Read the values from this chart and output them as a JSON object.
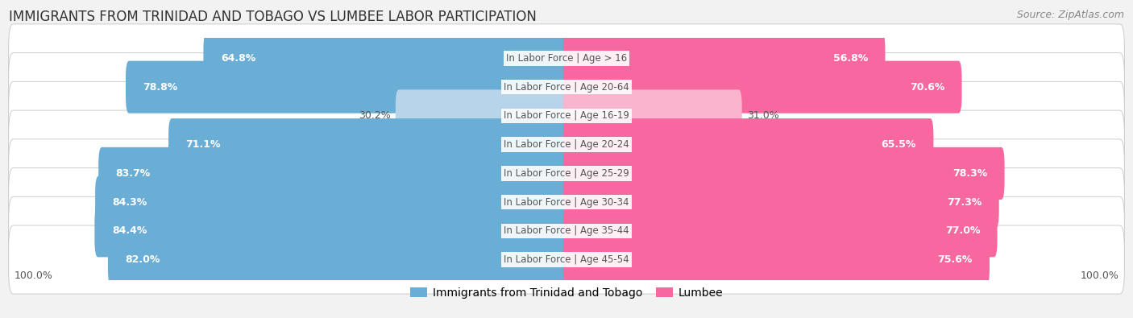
{
  "title": "IMMIGRANTS FROM TRINIDAD AND TOBAGO VS LUMBEE LABOR PARTICIPATION",
  "source": "Source: ZipAtlas.com",
  "categories": [
    "In Labor Force | Age > 16",
    "In Labor Force | Age 20-64",
    "In Labor Force | Age 16-19",
    "In Labor Force | Age 20-24",
    "In Labor Force | Age 25-29",
    "In Labor Force | Age 30-34",
    "In Labor Force | Age 35-44",
    "In Labor Force | Age 45-54"
  ],
  "left_values": [
    64.8,
    78.8,
    30.2,
    71.1,
    83.7,
    84.3,
    84.4,
    82.0
  ],
  "right_values": [
    56.8,
    70.6,
    31.0,
    65.5,
    78.3,
    77.3,
    77.0,
    75.6
  ],
  "left_color_strong": "#6aaed6",
  "left_color_light": "#b8d4ea",
  "right_color_strong": "#f768a1",
  "right_color_light": "#fbb4ce",
  "left_label": "Immigrants from Trinidad and Tobago",
  "right_label": "Lumbee",
  "background_color": "#f2f2f2",
  "light_row_threshold": 40,
  "max_value": 100.0,
  "title_fontsize": 12,
  "bar_fontsize": 9,
  "category_fontsize": 8.5,
  "legend_fontsize": 10,
  "footer_fontsize": 9
}
